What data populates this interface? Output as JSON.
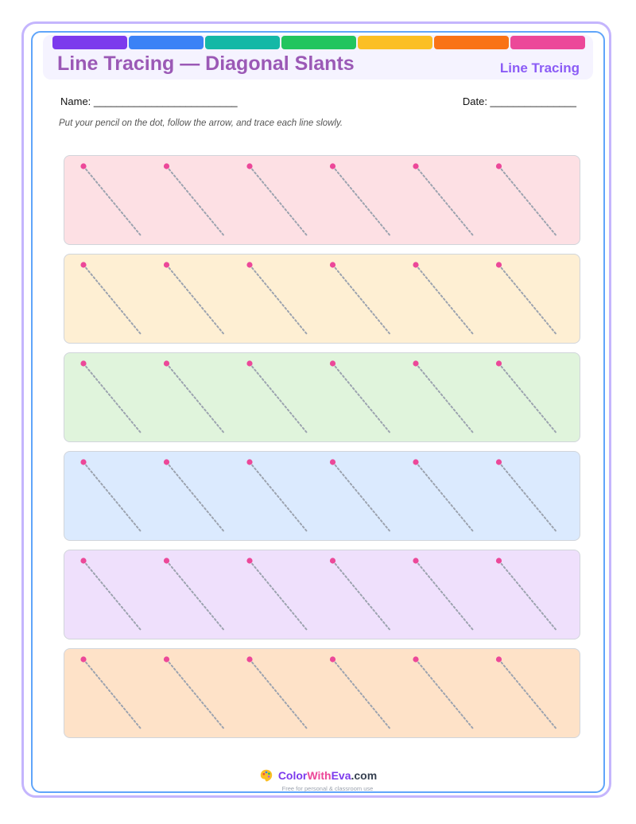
{
  "header": {
    "title": "Line Tracing — Diagonal Slants",
    "topic_label": "Line Tracing",
    "strip_colors": [
      "#7c3aed",
      "#3b82f6",
      "#14b8a6",
      "#22c55e",
      "#fbbf24",
      "#f97316",
      "#ec4899"
    ]
  },
  "fields": {
    "name": "Name: _________________________",
    "date": "Date: _______________"
  },
  "instructions": "Put your pencil on the dot, follow the arrow, and trace each line slowly.",
  "rows": [
    {
      "color": "#fde0e4",
      "strokes_per_row": 6
    },
    {
      "color": "#feefd3",
      "strokes_per_row": 6
    },
    {
      "color": "#e0f4dc",
      "strokes_per_row": 6
    },
    {
      "color": "#dbeafe",
      "strokes_per_row": 6
    },
    {
      "color": "#efe0fc",
      "strokes_per_row": 6
    },
    {
      "color": "#fee2c8",
      "strokes_per_row": 6
    }
  ],
  "start_dot_color": "#ec4899",
  "trace_line_color": "#9ca3af",
  "footer": {
    "brand_part1": "Color",
    "brand_part2": "With",
    "brand_part3": "Eva",
    "brand_part4": ".com",
    "tagline": "Free for personal & classroom use",
    "icon": "palette-icon"
  }
}
